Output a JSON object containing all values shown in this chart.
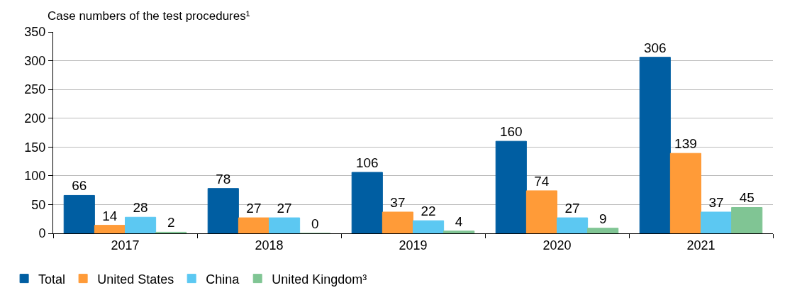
{
  "chart_data": {
    "type": "bar",
    "ylabel": "Case numbers of the test procedures¹",
    "categories": [
      "2017",
      "2018",
      "2019",
      "2020",
      "2021"
    ],
    "series": [
      {
        "name": "Total",
        "color": "#005ea2",
        "values": [
          66,
          78,
          106,
          160,
          306
        ]
      },
      {
        "name": "United States",
        "color": "#ff9b38",
        "values": [
          14,
          27,
          37,
          74,
          139
        ]
      },
      {
        "name": "China",
        "color": "#5cc8f2",
        "values": [
          28,
          27,
          22,
          27,
          37
        ]
      },
      {
        "name": "United Kingdom³",
        "color": "#80c594",
        "values": [
          2,
          0,
          4,
          9,
          45
        ]
      }
    ],
    "ylim": [
      0,
      350
    ],
    "yticks": [
      0,
      50,
      100,
      150,
      200,
      250,
      300,
      350
    ],
    "grid": "y",
    "legend": "bottom left",
    "data_labels": true
  }
}
